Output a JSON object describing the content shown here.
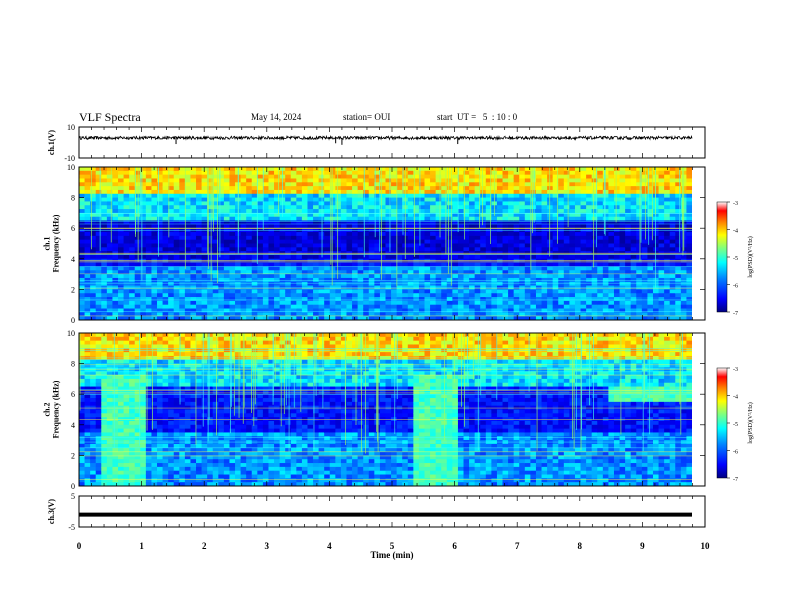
{
  "header": {
    "title": "VLF Spectra",
    "date": "May 14, 2024",
    "station": "station= OUI",
    "start": "start  UT =   5  : 10 : 0"
  },
  "chart_data": [
    {
      "id": "ch1",
      "type": "line",
      "ylabel": "ch.1(V)",
      "ylim": [
        -10,
        10
      ],
      "yticks": [
        -10,
        10
      ],
      "xlim": [
        0,
        10
      ],
      "baseline": 3,
      "noise_amplitude": 1,
      "spikes": [
        {
          "x": 1.55,
          "y": -1
        },
        {
          "x": 4.2,
          "y": -1.5
        },
        {
          "x": 6.05,
          "y": -1
        },
        {
          "x": 4.1,
          "y": -0.5
        }
      ]
    },
    {
      "id": "ch1-spec",
      "type": "heatmap",
      "ylabel": "ch.1\nFrequency (kHz)",
      "ylim": [
        0,
        10
      ],
      "yticks": [
        0,
        2,
        4,
        6,
        8,
        10
      ],
      "xlim": [
        0,
        10
      ],
      "colorbar_label": "log(PSD)(V²/Hz)",
      "colorbar_ticks": [
        -3,
        -4,
        -5,
        -6,
        -7
      ],
      "colorbar_range": [
        -7,
        -3
      ]
    },
    {
      "id": "ch2-spec",
      "type": "heatmap",
      "ylabel": "ch.2\nFrequency (kHz)",
      "ylim": [
        0,
        10
      ],
      "yticks": [
        0,
        2,
        4,
        6,
        8,
        10
      ],
      "xlim": [
        0,
        10
      ],
      "colorbar_label": "log(PSD)(V²/Hz)",
      "colorbar_ticks": [
        -3,
        -4,
        -5,
        -6,
        -7
      ],
      "colorbar_range": [
        -7,
        -3
      ],
      "bright_intervals_min": [
        [
          0.35,
          1.05
        ],
        [
          5.35,
          6.05
        ]
      ]
    },
    {
      "id": "ch3",
      "type": "line",
      "ylabel": "ch.3(V)",
      "ylim": [
        -5,
        5
      ],
      "yticks": [
        -5,
        5
      ],
      "xlim": [
        0,
        10
      ],
      "baseline": -1,
      "noise_amplitude": 0.1,
      "xlabel": "Time (min)",
      "xticks": [
        0,
        1,
        2,
        3,
        4,
        5,
        6,
        7,
        8,
        9,
        10
      ]
    }
  ],
  "colors": {
    "frame": "#000000",
    "trace": "#000000",
    "colormap": [
      "#00007f",
      "#0000ff",
      "#007fff",
      "#00ffff",
      "#7fff7f",
      "#ffff00",
      "#ff7f00",
      "#ff0000",
      "#7f0000"
    ]
  }
}
